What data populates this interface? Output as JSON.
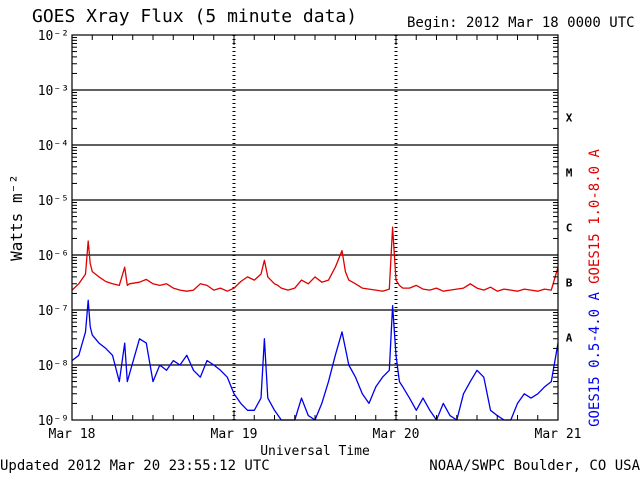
{
  "header": {
    "title": "GOES Xray Flux (5 minute data)",
    "begin": "Begin:  2012 Mar 18 0000 UTC"
  },
  "footer": {
    "updated": "Updated 2012 Mar 20 23:55:12 UTC",
    "credit": "NOAA/SWPC Boulder, CO USA"
  },
  "chart_data": {
    "type": "line",
    "title": "GOES Xray Flux (5 minute data)",
    "xlabel": "Universal Time",
    "ylabel": "Watts m⁻²",
    "yscale": "log",
    "xlim": [
      0,
      72
    ],
    "ylim": [
      1e-09,
      0.01
    ],
    "grid": true,
    "x_ticks": [
      {
        "x": 0,
        "label": "Mar 18"
      },
      {
        "x": 24,
        "label": "Mar 19"
      },
      {
        "x": 48,
        "label": "Mar 20"
      },
      {
        "x": 72,
        "label": "Mar 21"
      }
    ],
    "y_ticks": [
      {
        "exp": -9,
        "label": "10⁻⁹"
      },
      {
        "exp": -8,
        "label": "10⁻⁸"
      },
      {
        "exp": -7,
        "label": "10⁻⁷"
      },
      {
        "exp": -6,
        "label": "10⁻⁶"
      },
      {
        "exp": -5,
        "label": "10⁻⁵"
      },
      {
        "exp": -4,
        "label": "10⁻⁴"
      },
      {
        "exp": -3,
        "label": "10⁻³"
      },
      {
        "exp": -2,
        "label": "10⁻²"
      }
    ],
    "flare_classes": [
      {
        "label": "X",
        "exp": -3.5
      },
      {
        "label": "M",
        "exp": -4.5
      },
      {
        "label": "C",
        "exp": -5.5
      },
      {
        "label": "B",
        "exp": -6.5
      },
      {
        "label": "A",
        "exp": -7.5
      }
    ],
    "series": [
      {
        "name": "GOES15 1.0-8.0 A",
        "color": "#e00000",
        "x": [
          0,
          1,
          2,
          2.4,
          2.7,
          3,
          4,
          5,
          6,
          7,
          7.8,
          8.2,
          8.5,
          10,
          11,
          12,
          13,
          14,
          15,
          16,
          17,
          18,
          19,
          20,
          21,
          22,
          23,
          24,
          25,
          26,
          27,
          28,
          28.5,
          29,
          30,
          30.5,
          31,
          32,
          33,
          34,
          35,
          36,
          37,
          38,
          39,
          40,
          40.5,
          41,
          42,
          43,
          44,
          45,
          46,
          47,
          47.5,
          48,
          48.5,
          49,
          50,
          51,
          52,
          53,
          54,
          55,
          56,
          57,
          58,
          59,
          60,
          61,
          62,
          63,
          64,
          65,
          66,
          67,
          68,
          69,
          70,
          71,
          72
        ],
        "values": [
          2.3e-07,
          3e-07,
          4.5e-07,
          1.8e-06,
          7e-07,
          5e-07,
          4e-07,
          3.3e-07,
          3e-07,
          2.8e-07,
          6e-07,
          2.8e-07,
          3e-07,
          3.2e-07,
          3.6e-07,
          3e-07,
          2.8e-07,
          3e-07,
          2.5e-07,
          2.3e-07,
          2.2e-07,
          2.3e-07,
          3e-07,
          2.8e-07,
          2.3e-07,
          2.5e-07,
          2.2e-07,
          2.5e-07,
          3.3e-07,
          4e-07,
          3.5e-07,
          4.5e-07,
          8e-07,
          4e-07,
          3e-07,
          2.8e-07,
          2.5e-07,
          2.3e-07,
          2.5e-07,
          3.5e-07,
          3e-07,
          4e-07,
          3.2e-07,
          3.5e-07,
          6e-07,
          1.2e-06,
          5e-07,
          3.5e-07,
          3e-07,
          2.5e-07,
          2.4e-07,
          2.3e-07,
          2.2e-07,
          2.4e-07,
          3.2e-06,
          3.5e-07,
          2.8e-07,
          2.5e-07,
          2.5e-07,
          2.8e-07,
          2.4e-07,
          2.3e-07,
          2.5e-07,
          2.2e-07,
          2.3e-07,
          2.4e-07,
          2.5e-07,
          3e-07,
          2.5e-07,
          2.3e-07,
          2.6e-07,
          2.2e-07,
          2.4e-07,
          2.3e-07,
          2.2e-07,
          2.4e-07,
          2.3e-07,
          2.2e-07,
          2.4e-07,
          2.3e-07,
          6e-07
        ]
      },
      {
        "name": "GOES15 0.5-4.0 A",
        "color": "#0000ee",
        "x": [
          0,
          1,
          2,
          2.4,
          2.7,
          3,
          4,
          5,
          6,
          7,
          7.8,
          8.2,
          10,
          11,
          12,
          13,
          14,
          15,
          16,
          17,
          18,
          19,
          20,
          21,
          22,
          23,
          24,
          25,
          26,
          27,
          28,
          28.5,
          29,
          30,
          31,
          32,
          33,
          34,
          35,
          36,
          37,
          38,
          39,
          40,
          40.5,
          41,
          42,
          43,
          44,
          45,
          46,
          47,
          47.5,
          48,
          48.5,
          49,
          50,
          51,
          52,
          53,
          54,
          55,
          56,
          57,
          58,
          59,
          60,
          61,
          62,
          63,
          64,
          65,
          66,
          67,
          68,
          69,
          70,
          71,
          72
        ],
        "values": [
          1.2e-08,
          1.5e-08,
          4e-08,
          1.5e-07,
          5e-08,
          3.5e-08,
          2.5e-08,
          2e-08,
          1.5e-08,
          5e-09,
          2.5e-08,
          5e-09,
          3e-08,
          2.5e-08,
          5e-09,
          1e-08,
          8e-09,
          1.2e-08,
          1e-08,
          1.5e-08,
          8e-09,
          6e-09,
          1.2e-08,
          1e-08,
          8e-09,
          6e-09,
          3e-09,
          2e-09,
          1.5e-09,
          1.5e-09,
          2.5e-09,
          3e-08,
          2.5e-09,
          1.5e-09,
          1e-09,
          1e-09,
          1e-09,
          2.5e-09,
          1.2e-09,
          1e-09,
          2e-09,
          5e-09,
          1.5e-08,
          4e-08,
          2e-08,
          1e-08,
          6e-09,
          3e-09,
          2e-09,
          4e-09,
          6e-09,
          8e-09,
          1.2e-07,
          1.5e-08,
          5e-09,
          4e-09,
          2.5e-09,
          1.5e-09,
          2.5e-09,
          1.5e-09,
          1e-09,
          2e-09,
          1.2e-09,
          1e-09,
          3e-09,
          5e-09,
          8e-09,
          6e-09,
          1.5e-09,
          1.2e-09,
          1e-09,
          1e-09,
          2e-09,
          3e-09,
          2.5e-09,
          3e-09,
          4e-09,
          5e-09,
          2.5e-08
        ]
      }
    ]
  }
}
